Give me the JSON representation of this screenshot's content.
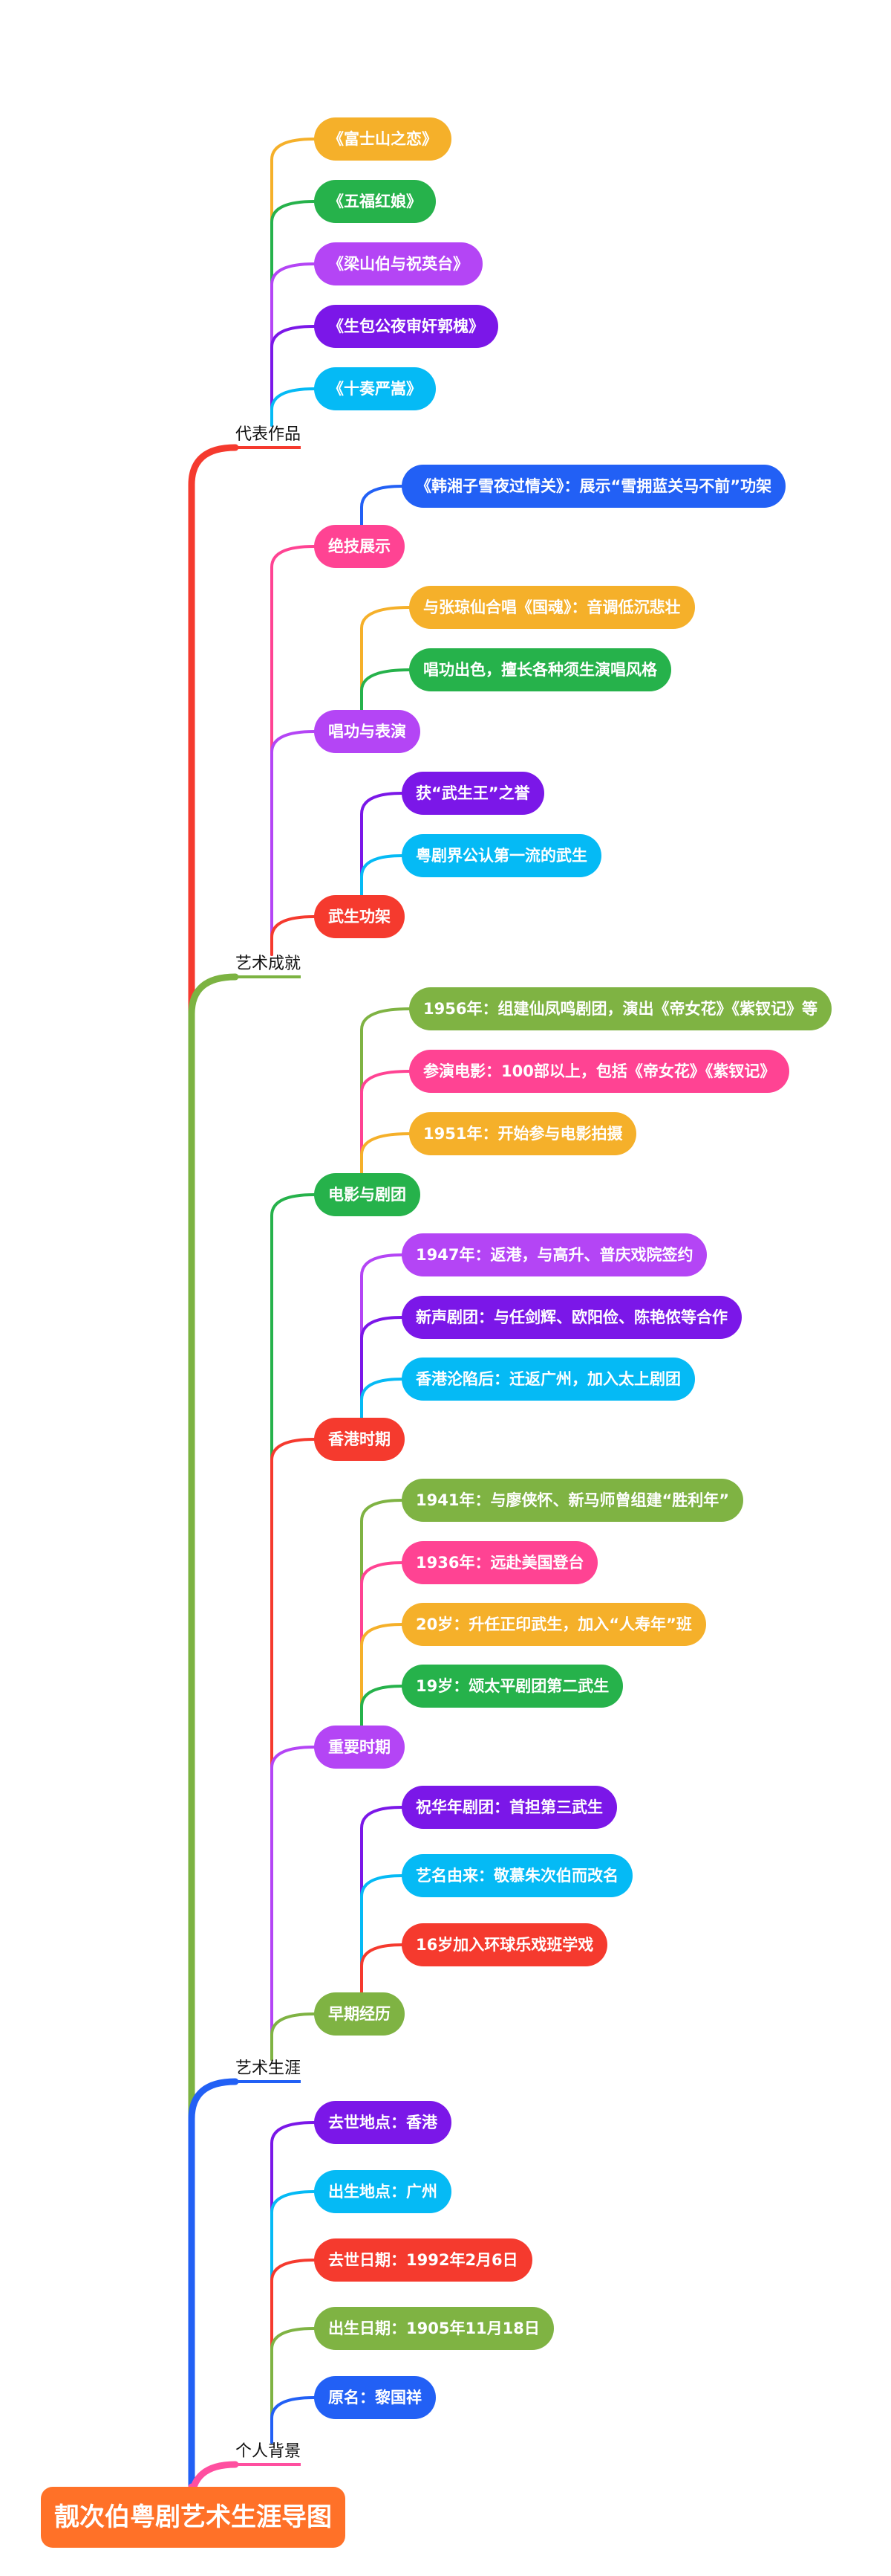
{
  "title": "靓次伯粤剧艺术生涯导图",
  "colors": {
    "root": "#FF7128",
    "b0": "#F53A2E",
    "b1": "#7CB342",
    "b2": "#2260F5",
    "b3": "#FF4FA0"
  },
  "branches": [
    {
      "label": "代表作品",
      "children": [
        {
          "text": "《富士山之恋》",
          "color": "#F5B02A"
        },
        {
          "text": "《五福红娘》",
          "color": "#26B24B"
        },
        {
          "text": "《梁山伯与祝英台》",
          "color": "#B445F5"
        },
        {
          "text": "《生包公夜审奸郭槐》",
          "color": "#7B17E8"
        },
        {
          "text": "《十奏严嵩》",
          "color": "#05BAF5"
        }
      ]
    },
    {
      "label": "艺术成就",
      "children": [
        {
          "text": "绝技展示",
          "color": "#FF4393",
          "children": [
            {
              "text": "《韩湘子雪夜过情关》：展示“雪拥蓝关马不前”功架",
              "color": "#2260F5"
            }
          ]
        },
        {
          "text": "唱功与表演",
          "color": "#B445F5",
          "children": [
            {
              "text": "与张琼仙合唱《国魂》：音调低沉悲壮",
              "color": "#F5B02A"
            },
            {
              "text": "唱功出色，擅长各种须生演唱风格",
              "color": "#26B24B"
            }
          ]
        },
        {
          "text": "武生功架",
          "color": "#F53A2E",
          "children": [
            {
              "text": "获“武生王”之誉",
              "color": "#7B17E8"
            },
            {
              "text": "粤剧界公认第一流的武生",
              "color": "#05BAF5"
            }
          ]
        }
      ]
    },
    {
      "label": "艺术生涯",
      "children": [
        {
          "text": "电影与剧团",
          "color": "#26B24B",
          "children": [
            {
              "text": "1956年：组建仙凤鸣剧团，演出《帝女花》《紫钗记》等",
              "color": "#7FB343"
            },
            {
              "text": "参演电影：100部以上，包括《帝女花》《紫钗记》",
              "color": "#FF4393"
            },
            {
              "text": "1951年：开始参与电影拍摄",
              "color": "#F5B02A"
            }
          ]
        },
        {
          "text": "香港时期",
          "color": "#F53A2E",
          "children": [
            {
              "text": "1947年：返港，与高升、普庆戏院签约",
              "color": "#B445F5"
            },
            {
              "text": "新声剧团：与任剑辉、欧阳俭、陈艳侬等合作",
              "color": "#7B17E8"
            },
            {
              "text": "香港沦陷后：迁返广州，加入太上剧团",
              "color": "#05BAF5"
            }
          ]
        },
        {
          "text": "重要时期",
          "color": "#B445F5",
          "children": [
            {
              "text": "1941年：与廖侠怀、新马师曾组建“胜利年”",
              "color": "#7FB343"
            },
            {
              "text": "1936年：远赴美国登台",
              "color": "#FF4393"
            },
            {
              "text": "20岁：升任正印武生，加入“人寿年”班",
              "color": "#F5B02A"
            },
            {
              "text": "19岁：颂太平剧团第二武生",
              "color": "#26B24B"
            }
          ]
        },
        {
          "text": "早期经历",
          "color": "#7FB343",
          "children": [
            {
              "text": "祝华年剧团：首担第三武生",
              "color": "#7B17E8"
            },
            {
              "text": "艺名由来：敬慕朱次伯而改名",
              "color": "#05BAF5"
            },
            {
              "text": "16岁加入环球乐戏班学戏",
              "color": "#F53A2E"
            }
          ]
        }
      ]
    },
    {
      "label": "个人背景",
      "children": [
        {
          "text": "去世地点：香港",
          "color": "#7B17E8"
        },
        {
          "text": "出生地点：广州",
          "color": "#05BAF5"
        },
        {
          "text": "去世日期：1992年2月6日",
          "color": "#F53A2E"
        },
        {
          "text": "出生日期：1905年11月18日",
          "color": "#7FB343"
        },
        {
          "text": "原名：黎国祥",
          "color": "#2260F5"
        }
      ]
    }
  ]
}
